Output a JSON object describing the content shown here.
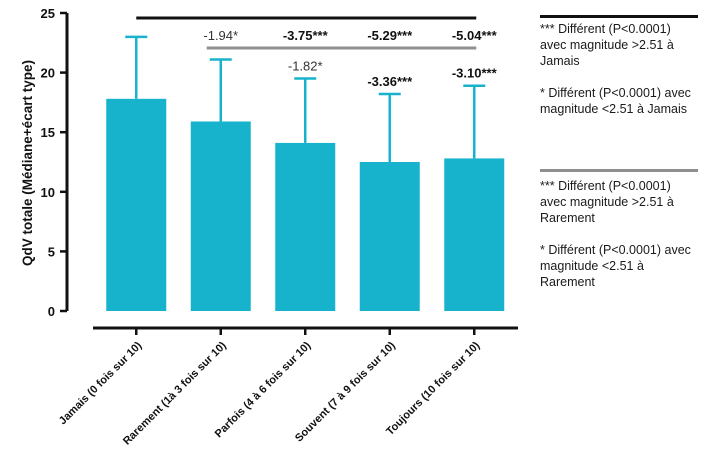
{
  "chart_data": {
    "type": "bar",
    "ylabel": "QdV totale (Médiane+écart type)",
    "ylim": [
      0,
      25
    ],
    "yticks": [
      "0",
      "5",
      "10",
      "15",
      "20",
      "25"
    ],
    "categories": [
      "Jamais (0 fois sur 10)",
      "Rarement (1à 3 fois sur 10)",
      "Parfois (4 à 6 fois sur 10)",
      "Souvent (7 à 9 fois sur 10)",
      "Toujours (10 fois sur 10)"
    ],
    "values": [
      17.8,
      15.9,
      14.1,
      12.5,
      12.8
    ],
    "error_upper": [
      23.0,
      21.1,
      19.5,
      18.2,
      18.9
    ],
    "annotations_vs_jamais": [
      "",
      "-1.94*",
      "-3.75***",
      "-5.29***",
      "-5.04***"
    ],
    "annotations_vs_rarement": [
      "",
      "",
      "-1.82*",
      "-3.36***",
      "-3.10***"
    ],
    "colors": {
      "bar": "#17b3cc",
      "axis": "#111111",
      "bracket_jamais": "#111111",
      "bracket_rarement": "#8f8f8f"
    },
    "grid": false
  },
  "legend": {
    "jamais": {
      "strong": "*** Différent (P<0.0001) avec magnitude >2.51 à Jamais",
      "weak": "* Différent (P<0.0001) avec magnitude <2.51 à Jamais"
    },
    "rarement": {
      "strong": "*** Différent (P<0.0001) avec magnitude >2.51 à Rarement",
      "weak": "* Différent (P<0.0001) avec magnitude <2.51 à Rarement"
    }
  }
}
